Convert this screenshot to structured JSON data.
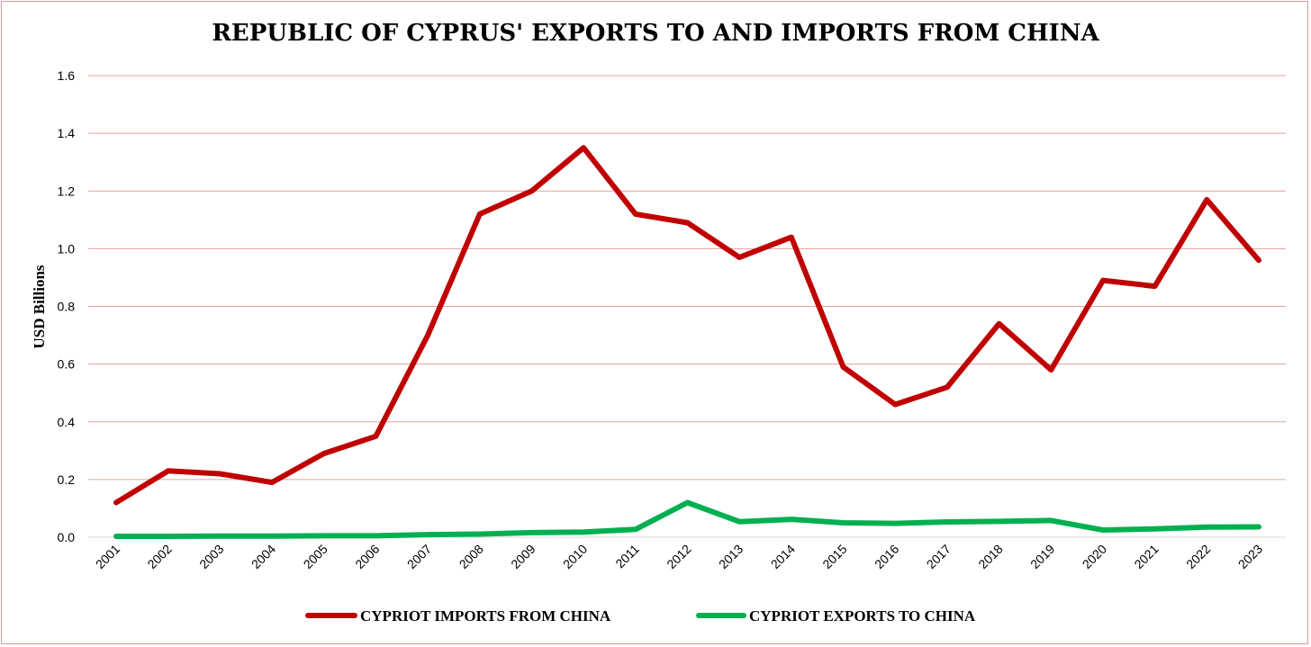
{
  "chart_data": {
    "type": "line",
    "title": "REPUBLIC OF CYPRUS' EXPORTS TO AND IMPORTS FROM CHINA",
    "xlabel": "",
    "ylabel": "USD Billions",
    "ylim": [
      0,
      1.6
    ],
    "yticks": [
      "0.0",
      "0.2",
      "0.4",
      "0.6",
      "0.8",
      "1.0",
      "1.2",
      "1.4",
      "1.6"
    ],
    "categories": [
      "2001",
      "2002",
      "2003",
      "2004",
      "2005",
      "2006",
      "2007",
      "2008",
      "2009",
      "2010",
      "2011",
      "2012",
      "2013",
      "2014",
      "2015",
      "2016",
      "2017",
      "2018",
      "2019",
      "2020",
      "2021",
      "2022",
      "2023"
    ],
    "grid": true,
    "legend_position": "bottom",
    "series": [
      {
        "name": "CYPRIOT IMPORTS FROM CHINA",
        "color": "#c00000",
        "values": [
          0.12,
          0.23,
          0.22,
          0.19,
          0.29,
          0.35,
          0.7,
          1.12,
          1.2,
          1.35,
          1.12,
          1.09,
          0.97,
          1.04,
          0.59,
          0.46,
          0.52,
          0.74,
          0.58,
          0.89,
          0.87,
          1.17,
          0.96
        ]
      },
      {
        "name": "CYPRIOT EXPORTS TO CHINA",
        "color": "#00b050",
        "values": [
          0.003,
          0.003,
          0.004,
          0.004,
          0.005,
          0.005,
          0.009,
          0.011,
          0.016,
          0.018,
          0.027,
          0.12,
          0.054,
          0.062,
          0.05,
          0.048,
          0.053,
          0.055,
          0.058,
          0.025,
          0.029,
          0.035,
          0.036
        ]
      }
    ]
  }
}
